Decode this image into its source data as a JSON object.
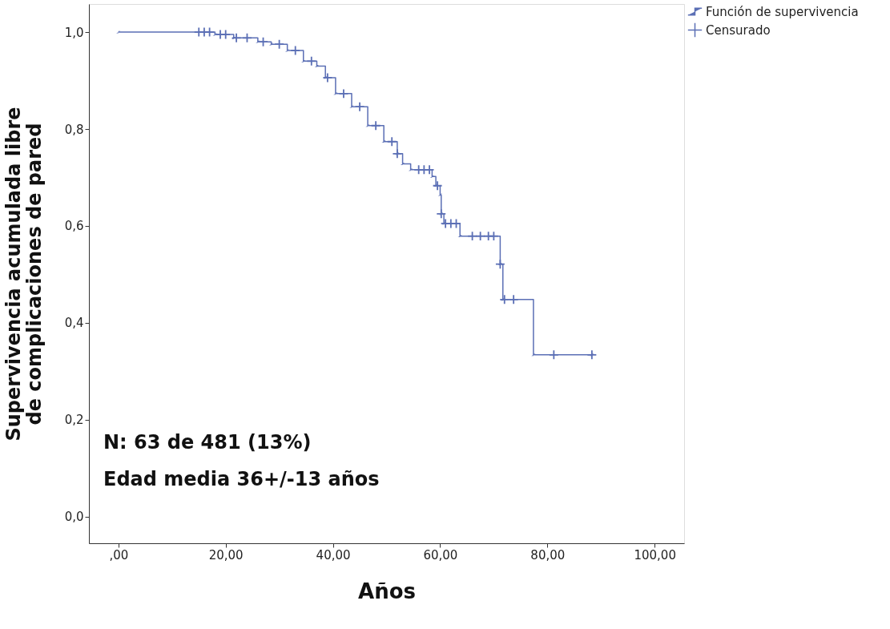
{
  "chart_data": {
    "type": "step",
    "xlabel": "Años",
    "ylabel": "Supervivencia acumulada libre de complicaciones de pared",
    "xlim": [
      -5.5,
      105.5
    ],
    "ylim": [
      -0.055,
      1.058
    ],
    "xticks": [
      {
        "value": 0,
        "label": ",00"
      },
      {
        "value": 20,
        "label": "20,00"
      },
      {
        "value": 40,
        "label": "40,00"
      },
      {
        "value": 60,
        "label": "60,00"
      },
      {
        "value": 80,
        "label": "80,00"
      },
      {
        "value": 100,
        "label": "100,00"
      }
    ],
    "yticks": [
      {
        "value": 0,
        "label": "0,0"
      },
      {
        "value": 0.2,
        "label": "0,2"
      },
      {
        "value": 0.4,
        "label": "0,4"
      },
      {
        "value": 0.6,
        "label": "0,6"
      },
      {
        "value": 0.8,
        "label": "0,8"
      },
      {
        "value": 1.0,
        "label": "1,0"
      }
    ],
    "grid": false,
    "legend": "top right",
    "annotations": [
      "N: 63 de 481 (13%)",
      "Edad media 36+/-13 años"
    ],
    "series": [
      {
        "name": "Función de supervivencia",
        "color": "#5b6fb5",
        "marker": "none",
        "x": [
          0,
          18,
          21.5,
          26,
          28.5,
          31.5,
          34.5,
          37,
          38.6,
          40.5,
          43.5,
          46.5,
          49.5,
          52,
          53,
          54.5,
          58.5,
          59.2,
          60,
          60.2,
          60.7,
          63.7,
          71.2,
          71.7,
          77.4,
          88.3
        ],
        "values": [
          1.0,
          0.995,
          0.988,
          0.98,
          0.975,
          0.962,
          0.94,
          0.93,
          0.906,
          0.873,
          0.846,
          0.807,
          0.774,
          0.749,
          0.728,
          0.716,
          0.702,
          0.683,
          0.664,
          0.625,
          0.605,
          0.579,
          0.521,
          0.448,
          0.334,
          0.334
        ]
      },
      {
        "name": "Censurado",
        "type": "scatter",
        "color": "#5b6fb5",
        "marker": "cross",
        "x": [
          15,
          16,
          17,
          19,
          20,
          22,
          24,
          27,
          30,
          33,
          36,
          39,
          42,
          45,
          48,
          51,
          52,
          56,
          57,
          58,
          59.5,
          60.2,
          61,
          62,
          63,
          66,
          67.5,
          69,
          70,
          71.2,
          72,
          73.7,
          81.2,
          88.3
        ],
        "values": [
          1.0,
          1.0,
          1.0,
          0.995,
          0.995,
          0.988,
          0.988,
          0.98,
          0.975,
          0.962,
          0.94,
          0.906,
          0.873,
          0.846,
          0.807,
          0.774,
          0.749,
          0.716,
          0.716,
          0.716,
          0.683,
          0.625,
          0.605,
          0.605,
          0.605,
          0.579,
          0.579,
          0.579,
          0.579,
          0.521,
          0.448,
          0.448,
          0.334,
          0.334
        ]
      }
    ]
  }
}
